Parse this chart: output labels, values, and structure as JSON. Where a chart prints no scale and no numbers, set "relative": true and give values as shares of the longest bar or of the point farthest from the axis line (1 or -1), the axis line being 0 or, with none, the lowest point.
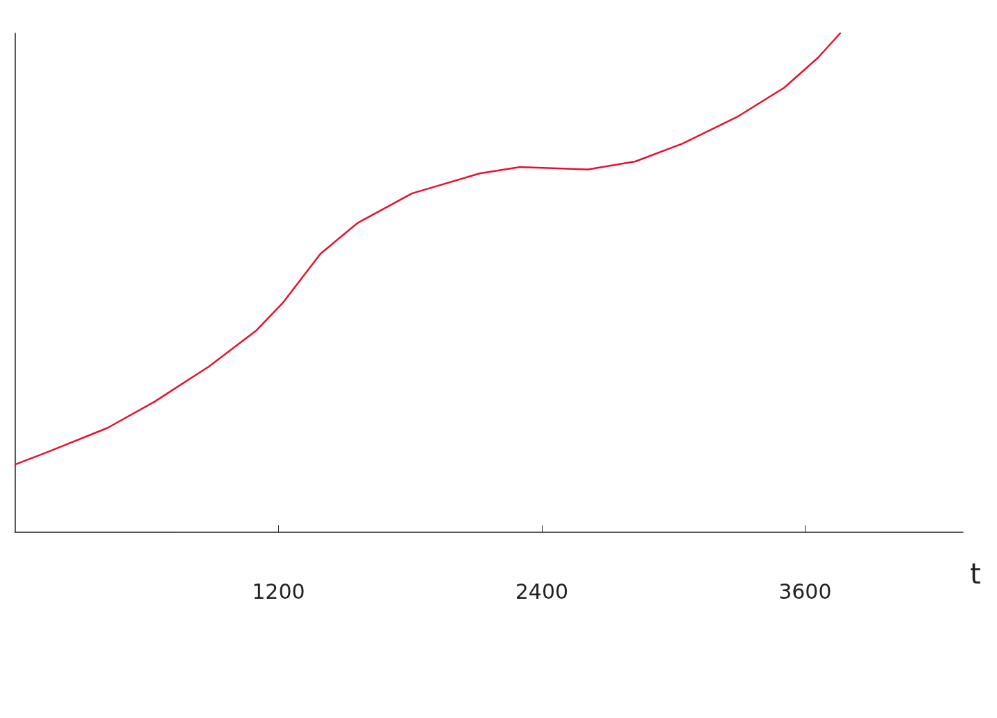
{
  "chart_data": {
    "type": "line",
    "xlabel": "t",
    "relative": true,
    "xlim": [
      0,
      4320
    ],
    "xticks": [
      1200,
      2400,
      3600
    ],
    "grid": false,
    "x": [
      0,
      142,
      420,
      636,
      882,
      1098,
      1222,
      1314,
      1391,
      1561,
      1808,
      2116,
      2301,
      2610,
      2826,
      3042,
      3289,
      3505,
      3659,
      3760
    ],
    "series": [
      {
        "color": "#e8102e",
        "values": [
          0.136,
          0.16,
          0.209,
          0.262,
          0.332,
          0.404,
          0.461,
          0.514,
          0.558,
          0.62,
          0.679,
          0.719,
          0.732,
          0.727,
          0.743,
          0.779,
          0.832,
          0.891,
          0.951,
          1
        ]
      }
    ]
  }
}
